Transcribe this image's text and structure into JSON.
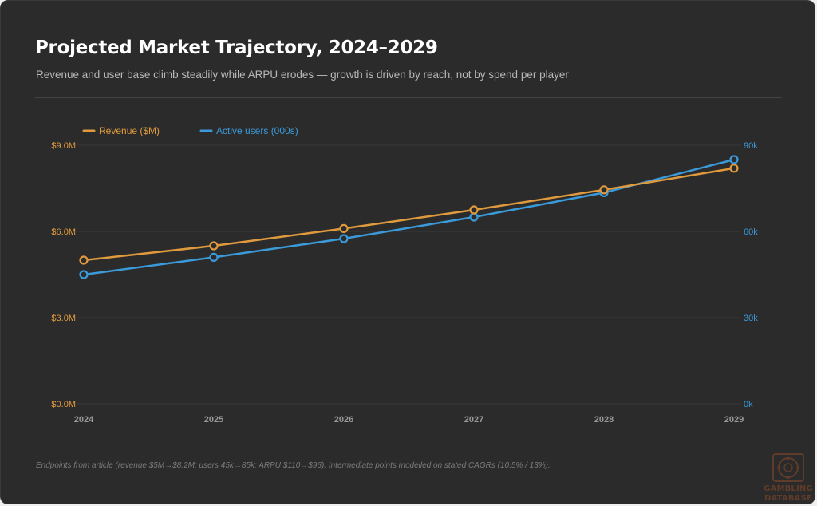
{
  "header": {
    "title": "Projected Market Trajectory, 2024–2029",
    "subtitle": "Revenue and user base climb steadily while ARPU erodes — growth is driven by reach, not by spend per player"
  },
  "footer": {
    "note": "Endpoints from article (revenue $5M→$8.2M; users 45k→85k; ARPU $110→$96). Intermediate points modelled on stated CAGRs (10.5% / 13%)."
  },
  "watermark": {
    "line1": "GAMBLING",
    "line2": "DATABASE"
  },
  "colors": {
    "revenue": "#e09a3e",
    "users": "#3b9ad9",
    "background": "#2b2b2b",
    "grid": "#3a3a3a"
  },
  "chart_data": {
    "type": "line",
    "x": [
      "2024",
      "2025",
      "2026",
      "2027",
      "2028",
      "2029"
    ],
    "grid": true,
    "legend_position": "top-left",
    "series": [
      {
        "name": "Revenue ($M)",
        "axis": "left",
        "values": [
          5.0,
          5.5,
          6.1,
          6.75,
          7.45,
          8.2
        ]
      },
      {
        "name": "Active users (000s)",
        "axis": "right",
        "values": [
          45,
          51,
          57.5,
          65,
          73.5,
          85
        ]
      }
    ],
    "y_left": {
      "ylim": [
        0,
        9
      ],
      "ticks": [
        0,
        3,
        6,
        9
      ],
      "tick_labels": [
        "$0.0M",
        "$3.0M",
        "$6.0M",
        "$9.0M"
      ]
    },
    "y_right": {
      "ylim": [
        0,
        90
      ],
      "ticks": [
        0,
        30,
        60,
        90
      ],
      "tick_labels": [
        "0k",
        "30k",
        "60k",
        "90k"
      ]
    }
  }
}
